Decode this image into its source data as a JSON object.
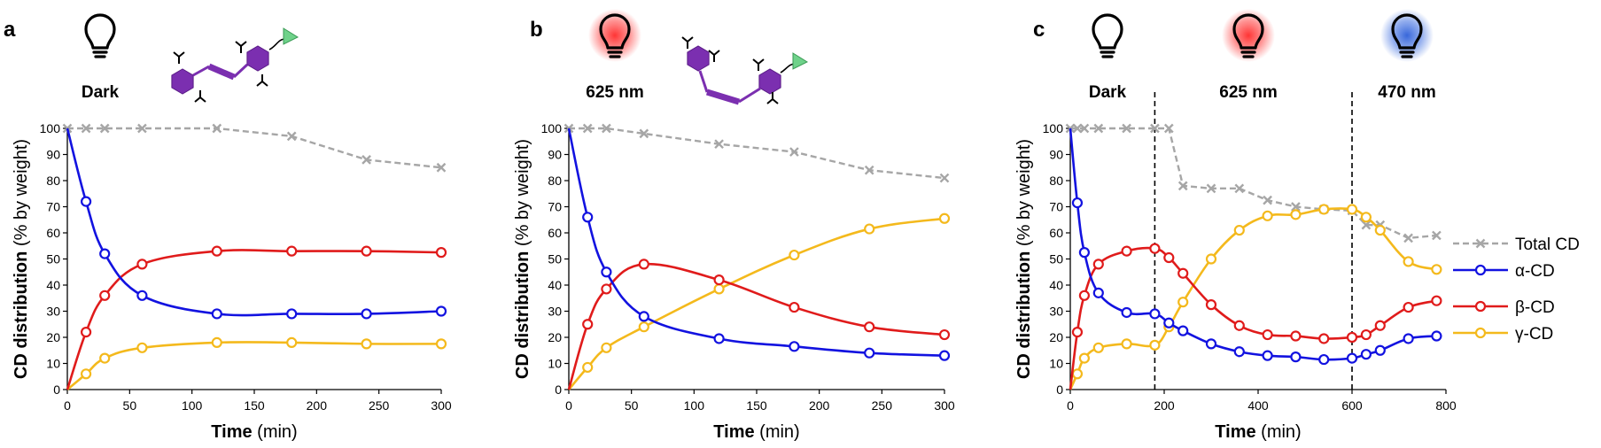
{
  "colors": {
    "total": "#a6a6a6",
    "alpha": "#1212e0",
    "beta": "#e01b1b",
    "gamma": "#f4b91c",
    "purple": "#7b2fb0",
    "green": "#6fd28a",
    "red_glow": "#ff2a2a",
    "blue_glow": "#2e5fd8"
  },
  "legend": {
    "items": [
      {
        "key": "total",
        "label": "Total CD"
      },
      {
        "key": "alpha",
        "label": "α-CD"
      },
      {
        "key": "beta",
        "label": "β-CD"
      },
      {
        "key": "gamma",
        "label": "γ-CD"
      }
    ]
  },
  "chart_data": [
    {
      "panel": "a",
      "type": "line",
      "light_labels": [
        {
          "text": "Dark",
          "icon": "bulb-dark-icon"
        }
      ],
      "xlabel_bold": "Time",
      "xlabel_unit": "(min)",
      "ylabel_bold": "CD distribution",
      "ylabel_unit": "(% by weight)",
      "xlim": [
        0,
        300
      ],
      "xticks": [
        0,
        50,
        100,
        150,
        200,
        250,
        300
      ],
      "ylim": [
        0,
        100
      ],
      "yticks": [
        0,
        10,
        20,
        30,
        40,
        50,
        60,
        70,
        80,
        90,
        100
      ],
      "vlines": [],
      "series": [
        {
          "key": "total",
          "name": "Total CD",
          "x": [
            0,
            15,
            30,
            60,
            120,
            180,
            240,
            300
          ],
          "y": [
            100,
            100,
            100,
            100,
            100,
            97,
            88,
            85
          ]
        },
        {
          "key": "alpha",
          "name": "α-CD",
          "x": [
            0,
            15,
            30,
            60,
            120,
            180,
            240,
            300
          ],
          "y": [
            100,
            72,
            52,
            36,
            29,
            29,
            29,
            30
          ]
        },
        {
          "key": "beta",
          "name": "β-CD",
          "x": [
            0,
            15,
            30,
            60,
            120,
            180,
            240,
            300
          ],
          "y": [
            0,
            22,
            36,
            48,
            53,
            53,
            53,
            52.5
          ]
        },
        {
          "key": "gamma",
          "name": "γ-CD",
          "x": [
            0,
            15,
            30,
            60,
            120,
            180,
            240,
            300
          ],
          "y": [
            0,
            6,
            12,
            16,
            18,
            18,
            17.5,
            17.5
          ]
        }
      ]
    },
    {
      "panel": "b",
      "type": "line",
      "light_labels": [
        {
          "text": "625 nm",
          "icon": "bulb-red-icon"
        }
      ],
      "xlabel_bold": "Time",
      "xlabel_unit": "(min)",
      "ylabel_bold": "CD distribution",
      "ylabel_unit": "(% by weight)",
      "xlim": [
        0,
        300
      ],
      "xticks": [
        0,
        50,
        100,
        150,
        200,
        250,
        300
      ],
      "ylim": [
        0,
        100
      ],
      "yticks": [
        0,
        10,
        20,
        30,
        40,
        50,
        60,
        70,
        80,
        90,
        100
      ],
      "vlines": [],
      "series": [
        {
          "key": "total",
          "name": "Total CD",
          "x": [
            0,
            15,
            30,
            60,
            120,
            180,
            240,
            300
          ],
          "y": [
            100,
            100,
            100,
            98,
            94,
            91,
            84,
            81
          ]
        },
        {
          "key": "alpha",
          "name": "α-CD",
          "x": [
            0,
            15,
            30,
            60,
            120,
            180,
            240,
            300
          ],
          "y": [
            100,
            66,
            45,
            28,
            19.5,
            16.5,
            14,
            13
          ]
        },
        {
          "key": "beta",
          "name": "β-CD",
          "x": [
            0,
            15,
            30,
            60,
            120,
            180,
            240,
            300
          ],
          "y": [
            0,
            25,
            38.5,
            48,
            42,
            31.5,
            24,
            21
          ]
        },
        {
          "key": "gamma",
          "name": "γ-CD",
          "x": [
            0,
            15,
            30,
            60,
            120,
            180,
            240,
            300
          ],
          "y": [
            0,
            8.5,
            16,
            24,
            38.5,
            51.5,
            61.5,
            65.5
          ]
        }
      ]
    },
    {
      "panel": "c",
      "type": "line",
      "light_labels": [
        {
          "text": "Dark",
          "icon": "bulb-dark-icon"
        },
        {
          "text": "625 nm",
          "icon": "bulb-red-icon"
        },
        {
          "text": "470 nm",
          "icon": "bulb-blue-icon"
        }
      ],
      "xlabel_bold": "Time",
      "xlabel_unit": "(min)",
      "ylabel_bold": "CD distribution",
      "ylabel_unit": "(% by weight)",
      "xlim": [
        0,
        800
      ],
      "xticks": [
        0,
        200,
        400,
        600,
        800
      ],
      "ylim": [
        0,
        100
      ],
      "yticks": [
        0,
        10,
        20,
        30,
        40,
        50,
        60,
        70,
        80,
        90,
        100
      ],
      "vlines": [
        180,
        600
      ],
      "series": [
        {
          "key": "total",
          "name": "Total CD",
          "x": [
            0,
            15,
            30,
            60,
            120,
            180,
            210,
            240,
            300,
            360,
            420,
            480,
            540,
            600,
            630,
            660,
            720,
            780
          ],
          "y": [
            100,
            100,
            100,
            100,
            100,
            100,
            100,
            78,
            77,
            77,
            72.5,
            70,
            69,
            68.5,
            63,
            63,
            58,
            59
          ]
        },
        {
          "key": "alpha",
          "name": "α-CD",
          "x": [
            0,
            15,
            30,
            60,
            120,
            180,
            210,
            240,
            300,
            360,
            420,
            480,
            540,
            600,
            630,
            660,
            720,
            780
          ],
          "y": [
            100,
            71.5,
            52.5,
            37,
            29.5,
            29,
            25.5,
            22.5,
            17.5,
            14.5,
            13,
            12.5,
            11.5,
            12,
            13.5,
            15,
            19.5,
            20.5
          ]
        },
        {
          "key": "beta",
          "name": "β-CD",
          "x": [
            0,
            15,
            30,
            60,
            120,
            180,
            210,
            240,
            300,
            360,
            420,
            480,
            540,
            600,
            630,
            660,
            720,
            780
          ],
          "y": [
            0,
            22,
            36,
            48,
            53,
            54,
            50.5,
            44.5,
            32.5,
            24.5,
            21,
            20.5,
            19.5,
            20,
            21,
            24.5,
            31.5,
            34
          ]
        },
        {
          "key": "gamma",
          "name": "γ-CD",
          "x": [
            0,
            15,
            30,
            60,
            120,
            180,
            210,
            240,
            300,
            360,
            420,
            480,
            540,
            600,
            630,
            660,
            720,
            780
          ],
          "y": [
            0,
            6,
            12,
            16,
            17.5,
            17,
            24,
            33.5,
            50,
            61,
            66.5,
            67,
            69,
            69,
            66,
            61,
            49,
            46
          ]
        }
      ]
    }
  ]
}
